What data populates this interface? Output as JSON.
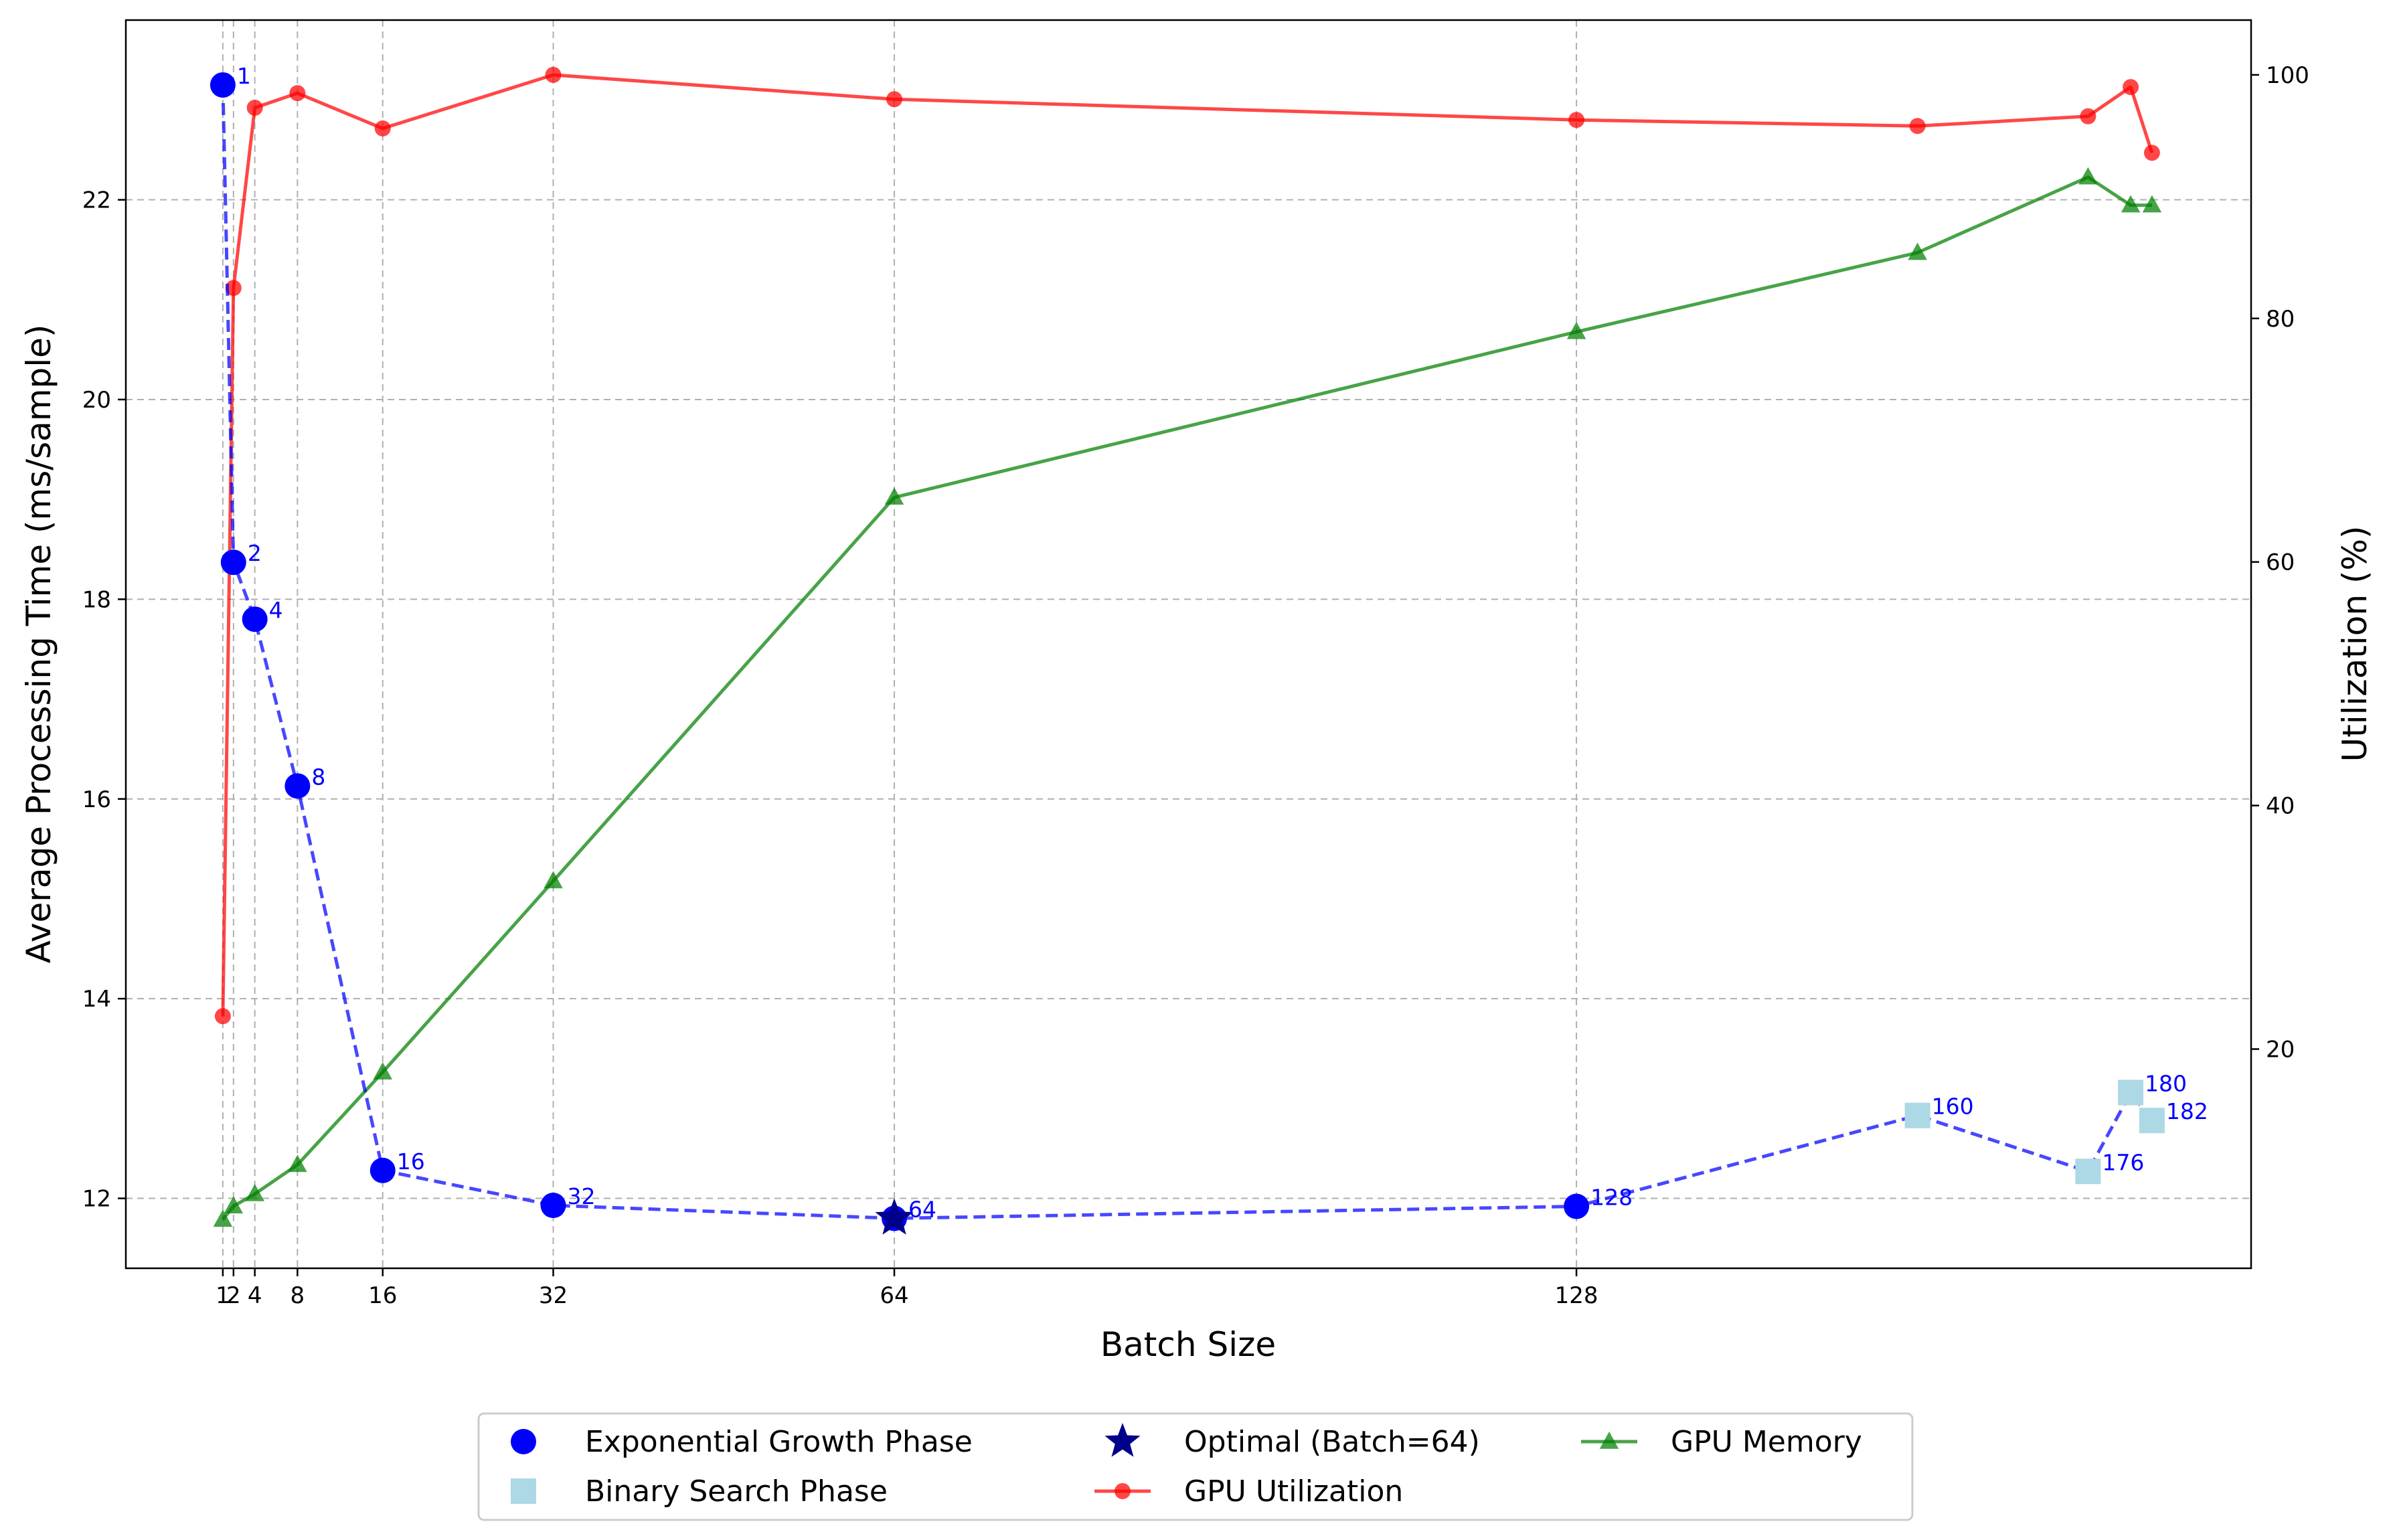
{
  "chart_data": {
    "type": "line",
    "xlabel": "Batch Size",
    "ylabel_left": "Average Processing Time (ms/sample)",
    "ylabel_right": "Utilization (%)",
    "x_ticks": [
      1,
      2,
      4,
      8,
      16,
      32,
      64,
      128
    ],
    "x_tick_labels": [
      "1",
      "2",
      "4",
      "8",
      "16",
      "32",
      "64",
      "128"
    ],
    "x_range": [
      -8.1,
      191.3
    ],
    "y_left_ticks": [
      12,
      14,
      16,
      18,
      20,
      22
    ],
    "y_left_range": [
      11.3,
      23.8
    ],
    "y_right_ticks": [
      20,
      40,
      60,
      80,
      100
    ],
    "y_right_range": [
      2,
      104.5
    ],
    "grid": true,
    "legend_position": "bottom-center-outside",
    "colors": {
      "exponential": "#0000ff",
      "binary": "#add8e6",
      "optimal": "#00008b",
      "utilization": "#ff0000",
      "memory": "#008000",
      "time_line": "#0000ff"
    },
    "series": [
      {
        "name": "Exponential Growth Phase",
        "axis": "left",
        "marker": "circle",
        "x": [
          1,
          2,
          4,
          8,
          16,
          32,
          64,
          128
        ],
        "y": [
          23.15,
          18.37,
          17.8,
          16.13,
          12.28,
          11.93,
          11.8,
          11.92
        ]
      },
      {
        "name": "Binary Search Phase",
        "axis": "left",
        "marker": "square",
        "x": [
          160,
          176,
          180,
          182
        ],
        "y": [
          12.83,
          12.27,
          13.06,
          12.78
        ]
      },
      {
        "name": "Optimal (Batch=64)",
        "axis": "left",
        "marker": "star",
        "x": [
          64
        ],
        "y": [
          11.8
        ]
      },
      {
        "name": "GPU Utilization",
        "axis": "right",
        "marker": "circle",
        "x": [
          1,
          2,
          4,
          8,
          16,
          32,
          64,
          128,
          160,
          176,
          180,
          182
        ],
        "y": [
          22.7,
          82.5,
          97.3,
          98.5,
          95.6,
          100.0,
          98.0,
          96.3,
          95.8,
          96.6,
          99.0,
          93.6
        ]
      },
      {
        "name": "GPU Memory",
        "axis": "right",
        "marker": "triangle",
        "x": [
          1,
          2,
          4,
          8,
          16,
          32,
          64,
          128,
          160,
          176,
          180,
          182
        ],
        "y": [
          6.0,
          7.1,
          8.1,
          10.5,
          18.1,
          33.8,
          65.3,
          78.9,
          85.4,
          91.6,
          89.3,
          89.3
        ]
      }
    ],
    "time_line_order": {
      "x": [
        1,
        2,
        4,
        8,
        16,
        32,
        64,
        128,
        160,
        176,
        180,
        182
      ],
      "y": [
        23.15,
        18.37,
        17.8,
        16.13,
        12.28,
        11.93,
        11.8,
        11.92,
        12.83,
        12.27,
        13.06,
        12.78
      ]
    },
    "annotations": [
      {
        "label": "1",
        "x": 1,
        "y": 23.15
      },
      {
        "label": "2",
        "x": 2,
        "y": 18.37
      },
      {
        "label": "4",
        "x": 4,
        "y": 17.8
      },
      {
        "label": "8",
        "x": 8,
        "y": 16.13
      },
      {
        "label": "16",
        "x": 16,
        "y": 12.28
      },
      {
        "label": "32",
        "x": 32,
        "y": 11.93
      },
      {
        "label": "64",
        "x": 64,
        "y": 11.8
      },
      {
        "label": "128",
        "x": 128,
        "y": 11.92
      },
      {
        "label": "160",
        "x": 160,
        "y": 12.83
      },
      {
        "label": "176",
        "x": 176,
        "y": 12.27
      },
      {
        "label": "180",
        "x": 180,
        "y": 13.06
      },
      {
        "label": "182",
        "x": 182,
        "y": 12.78
      }
    ],
    "legend": [
      {
        "label": "Exponential Growth Phase",
        "marker": "circle",
        "color": "#0000ff",
        "line": false
      },
      {
        "label": "Binary Search Phase",
        "marker": "square",
        "color": "#add8e6",
        "line": false
      },
      {
        "label": "Optimal (Batch=64)",
        "marker": "star",
        "color": "#00008b",
        "line": false
      },
      {
        "label": "GPU Utilization",
        "marker": "circle",
        "color": "#ff0000",
        "line": true
      },
      {
        "label": "GPU Memory",
        "marker": "triangle",
        "color": "#008000",
        "line": true
      }
    ]
  }
}
